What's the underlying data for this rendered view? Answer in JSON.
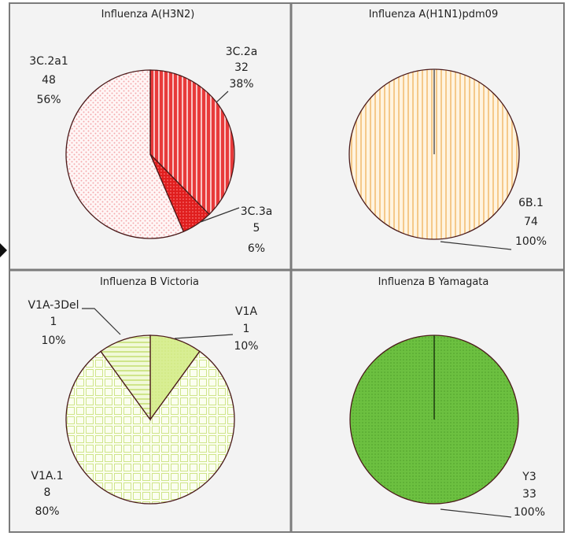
{
  "chart_data": [
    {
      "type": "pie",
      "title": "Influenza A(H3N2)",
      "slices": [
        {
          "name": "3C.2a",
          "count": "32",
          "percent": "38%",
          "value": 32,
          "color": "#e83a3a",
          "pattern": "vstripe-red"
        },
        {
          "name": "3C.3a",
          "count": "5",
          "percent": "6%",
          "value": 5,
          "color": "#e01e1e",
          "pattern": "dots-red"
        },
        {
          "name": "3C.2a1",
          "count": "48",
          "percent": "56%",
          "value": 48,
          "color": "#fdeff0",
          "pattern": "dots-pink"
        }
      ]
    },
    {
      "type": "pie",
      "title": "Influenza A(H1N1)pdm09",
      "slices": [
        {
          "name": "6B.1",
          "count": "74",
          "percent": "100%",
          "value": 74,
          "color": "#fde3b8",
          "pattern": "vstripe-orange"
        }
      ]
    },
    {
      "type": "pie",
      "title": "Influenza B Victoria",
      "slices": [
        {
          "name": "V1A",
          "count": "1",
          "percent": "10%",
          "value": 1,
          "color": "#dbef9a",
          "pattern": "solid-lime"
        },
        {
          "name": "V1A.1",
          "count": "8",
          "percent": "80%",
          "value": 8,
          "color": "#f8fce6",
          "pattern": "grid-lime"
        },
        {
          "name": "V1A-3Del",
          "count": "1",
          "percent": "10%",
          "value": 1,
          "color": "#eef8cf",
          "pattern": "hstripe-lime"
        }
      ]
    },
    {
      "type": "pie",
      "title": "Influenza B Yamagata",
      "slices": [
        {
          "name": "Y3",
          "count": "33",
          "percent": "100%",
          "value": 33,
          "color": "#6cc040",
          "pattern": "dots-green"
        }
      ]
    }
  ]
}
